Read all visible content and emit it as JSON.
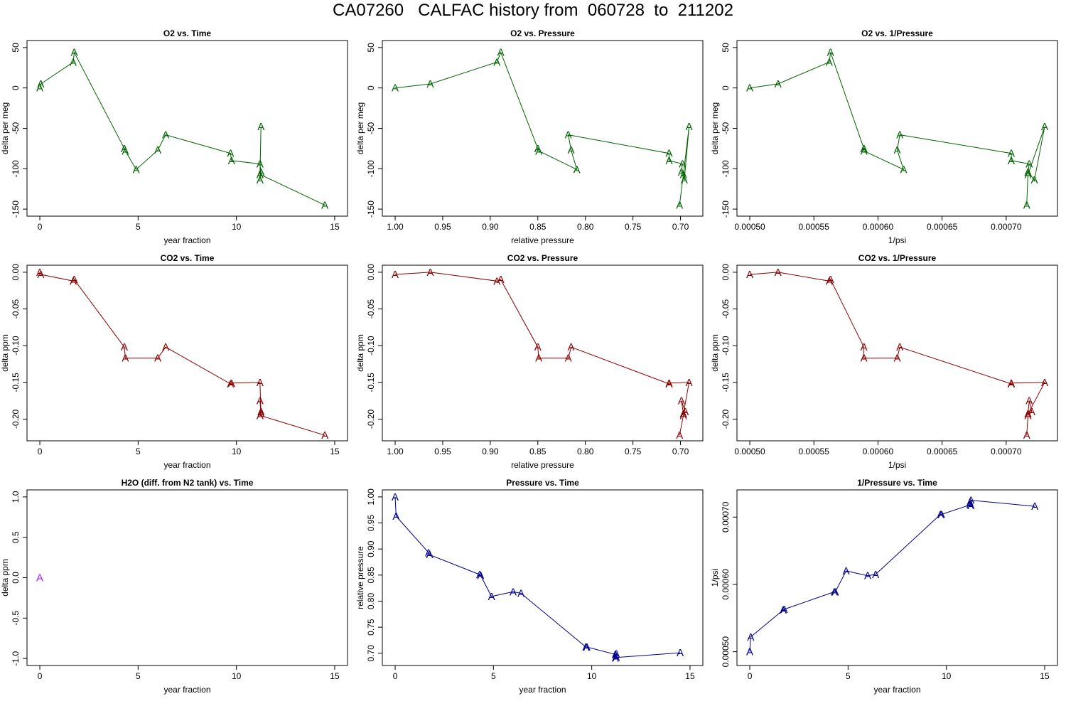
{
  "title": "CA07260   CALFAC history from  060728  to  211202",
  "colors": {
    "o2": "#006400",
    "co2": "#8b0000",
    "h2o": "#a020f0",
    "pressure": "#00008b"
  },
  "marker_symbol": "A",
  "chart_data": [
    {
      "type": "line",
      "title": "O2 vs. Time",
      "xlabel": "year fraction",
      "ylabel": "delta per meg",
      "xlim": [
        0,
        15
      ],
      "ylim": [
        -150,
        50
      ],
      "xticks": [
        0,
        5,
        10,
        15
      ],
      "xtick_labels": [
        "0",
        "5",
        "10",
        "15"
      ],
      "yticks": [
        -150,
        -100,
        -50,
        0,
        50
      ],
      "ytick_labels": [
        "-150",
        "-100",
        "-50",
        "0",
        "50"
      ],
      "color_key": "o2",
      "x": [
        0.0,
        0.05,
        1.7,
        1.75,
        4.3,
        4.35,
        4.9,
        6.0,
        6.4,
        9.7,
        9.75,
        11.2,
        11.25,
        11.2,
        11.25,
        11.2,
        14.5
      ],
      "y": [
        0,
        5,
        32,
        44,
        -75,
        -78,
        -101,
        -77,
        -58,
        -81,
        -90,
        -94,
        -104,
        -114,
        -48,
        -107,
        -145
      ]
    },
    {
      "type": "line",
      "title": "O2 vs. Pressure",
      "xlabel": "relative pressure",
      "ylabel": "delta per meg",
      "xlim": [
        1.0,
        0.69
      ],
      "ylim": [
        -150,
        50
      ],
      "xticks": [
        1.0,
        0.95,
        0.9,
        0.85,
        0.8,
        0.75,
        0.7
      ],
      "xtick_labels": [
        "1.00",
        "0.95",
        "0.90",
        "0.85",
        "0.80",
        "0.75",
        "0.70"
      ],
      "yticks": [
        -150,
        -100,
        -50,
        0,
        50
      ],
      "ytick_labels": [
        "-150",
        "-100",
        "-50",
        "0",
        "50"
      ],
      "color_key": "o2",
      "x": [
        1.0,
        0.963,
        0.893,
        0.889,
        0.85,
        0.849,
        0.809,
        0.815,
        0.818,
        0.712,
        0.712,
        0.698,
        0.699,
        0.696,
        0.691,
        0.697,
        0.701
      ],
      "y": [
        0,
        5,
        32,
        44,
        -75,
        -78,
        -101,
        -77,
        -58,
        -81,
        -90,
        -94,
        -104,
        -114,
        -48,
        -107,
        -145
      ]
    },
    {
      "type": "line",
      "title": "O2 vs. 1/Pressure",
      "xlabel": "1/psi",
      "ylabel": "delta per meg",
      "xlim": [
        0.0005,
        0.00073
      ],
      "ylim": [
        -150,
        50
      ],
      "xticks": [
        0.0005,
        0.00055,
        0.0006,
        0.00065,
        0.0007
      ],
      "xtick_labels": [
        "0.00050",
        "0.00055",
        "0.00060",
        "0.00065",
        "0.00070"
      ],
      "yticks": [
        -150,
        -100,
        -50,
        0,
        50
      ],
      "ytick_labels": [
        "-150",
        "-100",
        "-50",
        "0",
        "50"
      ],
      "color_key": "o2",
      "x": [
        0.0005,
        0.000522,
        0.000562,
        0.000563,
        0.000589,
        0.000589,
        0.00062,
        0.000615,
        0.000617,
        0.000704,
        0.000704,
        0.000718,
        0.000717,
        0.000722,
        0.00073,
        0.000717,
        0.000716
      ],
      "y": [
        0,
        5,
        32,
        44,
        -75,
        -78,
        -101,
        -77,
        -58,
        -81,
        -90,
        -94,
        -104,
        -114,
        -48,
        -107,
        -145
      ]
    },
    {
      "type": "line",
      "title": "CO2 vs. Time",
      "xlabel": "year fraction",
      "ylabel": "delta ppm",
      "xlim": [
        0,
        15
      ],
      "ylim": [
        -0.22,
        0.0
      ],
      "xticks": [
        0,
        5,
        10,
        15
      ],
      "xtick_labels": [
        "0",
        "5",
        "10",
        "15"
      ],
      "yticks": [
        -0.2,
        -0.15,
        -0.1,
        -0.05,
        0.0
      ],
      "ytick_labels": [
        "-0.20",
        "-0.15",
        "-0.10",
        "-0.05",
        "0.00"
      ],
      "color_key": "co2",
      "x": [
        0.0,
        0.05,
        1.7,
        1.75,
        4.3,
        4.35,
        6.0,
        6.4,
        9.7,
        9.75,
        11.2,
        11.25,
        11.2,
        11.25,
        11.2,
        14.5
      ],
      "y": [
        0.0,
        -0.003,
        -0.012,
        -0.01,
        -0.102,
        -0.117,
        -0.117,
        -0.102,
        -0.152,
        -0.151,
        -0.15,
        -0.193,
        -0.175,
        -0.19,
        -0.195,
        -0.222
      ]
    },
    {
      "type": "line",
      "title": "CO2 vs. Pressure",
      "xlabel": "relative pressure",
      "ylabel": "delta ppm",
      "xlim": [
        1.0,
        0.69
      ],
      "ylim": [
        -0.22,
        0.0
      ],
      "xticks": [
        1.0,
        0.95,
        0.9,
        0.85,
        0.8,
        0.75,
        0.7
      ],
      "xtick_labels": [
        "1.00",
        "0.95",
        "0.90",
        "0.85",
        "0.80",
        "0.75",
        "0.70"
      ],
      "yticks": [
        -0.2,
        -0.15,
        -0.1,
        -0.05,
        0.0
      ],
      "ytick_labels": [
        "-0.20",
        "-0.15",
        "-0.10",
        "-0.05",
        "0.00"
      ],
      "color_key": "co2",
      "x": [
        1.0,
        0.963,
        0.893,
        0.889,
        0.85,
        0.849,
        0.818,
        0.815,
        0.712,
        0.712,
        0.691,
        0.697,
        0.699,
        0.695,
        0.697,
        0.701
      ],
      "y": [
        -0.003,
        0.0,
        -0.012,
        -0.01,
        -0.102,
        -0.117,
        -0.117,
        -0.102,
        -0.152,
        -0.151,
        -0.15,
        -0.193,
        -0.175,
        -0.19,
        -0.195,
        -0.222
      ]
    },
    {
      "type": "line",
      "title": "CO2 vs. 1/Pressure",
      "xlabel": "1/psi",
      "ylabel": "delta ppm",
      "xlim": [
        0.0005,
        0.00073
      ],
      "ylim": [
        -0.22,
        0.0
      ],
      "xticks": [
        0.0005,
        0.00055,
        0.0006,
        0.00065,
        0.0007
      ],
      "xtick_labels": [
        "0.00050",
        "0.00055",
        "0.00060",
        "0.00065",
        "0.00070"
      ],
      "yticks": [
        -0.2,
        -0.15,
        -0.1,
        -0.05,
        0.0
      ],
      "ytick_labels": [
        "-0.20",
        "-0.15",
        "-0.10",
        "-0.05",
        "0.00"
      ],
      "color_key": "co2",
      "x": [
        0.0005,
        0.000522,
        0.000562,
        0.000563,
        0.000589,
        0.000589,
        0.000615,
        0.000617,
        0.000704,
        0.000704,
        0.00073,
        0.000717,
        0.000718,
        0.00072,
        0.000717,
        0.000716
      ],
      "y": [
        -0.003,
        0.0,
        -0.012,
        -0.01,
        -0.102,
        -0.117,
        -0.117,
        -0.102,
        -0.152,
        -0.151,
        -0.15,
        -0.193,
        -0.175,
        -0.19,
        -0.195,
        -0.222
      ]
    },
    {
      "type": "scatter",
      "title": "H2O (diff. from N2 tank) vs. Time",
      "xlabel": "year fraction",
      "ylabel": "delta ppm",
      "xlim": [
        0,
        15
      ],
      "ylim": [
        -1.0,
        1.0
      ],
      "xticks": [
        0,
        5,
        10,
        15
      ],
      "xtick_labels": [
        "0",
        "5",
        "10",
        "15"
      ],
      "yticks": [
        -1.0,
        -0.5,
        0.0,
        0.5,
        1.0
      ],
      "ytick_labels": [
        "-1.0",
        "-0.5",
        "0.0",
        "0.5",
        "1.0"
      ],
      "color_key": "h2o",
      "x": [
        0.0
      ],
      "y": [
        0.0
      ]
    },
    {
      "type": "line",
      "title": "Pressure vs. Time",
      "xlabel": "year fraction",
      "ylabel": "relative pressure",
      "xlim": [
        0,
        15
      ],
      "ylim": [
        0.69,
        1.0
      ],
      "xticks": [
        0,
        5,
        10,
        15
      ],
      "xtick_labels": [
        "0",
        "5",
        "10",
        "15"
      ],
      "yticks": [
        0.7,
        0.75,
        0.8,
        0.85,
        0.9,
        0.95,
        1.0
      ],
      "ytick_labels": [
        "0.70",
        "0.75",
        "0.80",
        "0.85",
        "0.90",
        "0.95",
        "1.00"
      ],
      "color_key": "pressure",
      "x": [
        0.0,
        0.05,
        1.7,
        1.75,
        4.3,
        4.35,
        4.9,
        6.0,
        6.4,
        9.7,
        9.75,
        11.2,
        11.25,
        11.2,
        11.25,
        14.5
      ],
      "y": [
        1.0,
        0.963,
        0.893,
        0.889,
        0.851,
        0.849,
        0.809,
        0.818,
        0.815,
        0.712,
        0.712,
        0.698,
        0.699,
        0.691,
        0.692,
        0.701
      ]
    },
    {
      "type": "line",
      "title": "1/Pressure vs. Time",
      "xlabel": "year fraction",
      "ylabel": "1/psi",
      "xlim": [
        0,
        15
      ],
      "ylim": [
        0.00049,
        0.00073
      ],
      "xticks": [
        0,
        5,
        10,
        15
      ],
      "xtick_labels": [
        "0",
        "5",
        "10",
        "15"
      ],
      "yticks": [
        0.0005,
        0.0006,
        0.0007
      ],
      "ytick_labels": [
        "0.00050",
        "0.00060",
        "0.00070"
      ],
      "color_key": "pressure",
      "x": [
        0.0,
        0.05,
        1.7,
        1.75,
        4.3,
        4.35,
        4.9,
        6.0,
        6.4,
        9.7,
        9.75,
        11.2,
        11.25,
        11.2,
        11.25,
        14.5
      ],
      "y": [
        0.0005,
        0.000522,
        0.000562,
        0.000563,
        0.000589,
        0.000589,
        0.00062,
        0.000613,
        0.000615,
        0.000704,
        0.000704,
        0.000718,
        0.000717,
        0.000722,
        0.000725,
        0.000716
      ]
    }
  ]
}
